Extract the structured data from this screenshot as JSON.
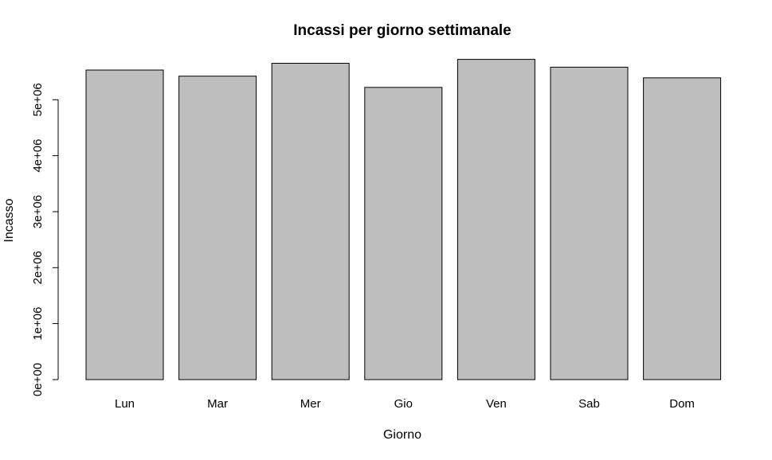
{
  "chart_data": {
    "type": "bar",
    "title": "Incassi per giorno settimanale",
    "xlabel": "Giorno",
    "ylabel": "Incasso",
    "categories": [
      "Lun",
      "Mar",
      "Mer",
      "Gio",
      "Ven",
      "Sab",
      "Dom"
    ],
    "values": [
      5530000,
      5420000,
      5650000,
      5220000,
      5720000,
      5580000,
      5390000
    ],
    "yticks": [
      0,
      1000000,
      2000000,
      3000000,
      4000000,
      5000000
    ],
    "ytick_labels": [
      "0e+00",
      "1e+06",
      "2e+06",
      "3e+06",
      "4e+06",
      "5e+06"
    ],
    "ylim": [
      0,
      5720000
    ],
    "bar_color": "#bebebe",
    "grid": false,
    "legend": "none"
  }
}
